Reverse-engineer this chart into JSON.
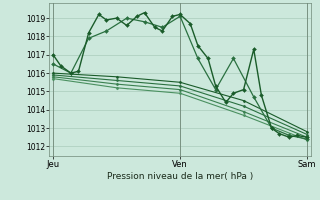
{
  "title": "Pression niveau de la mer( hPa )",
  "background_color": "#cce8dc",
  "grid_color": "#aaccbb",
  "ylim": [
    1011.5,
    1019.8
  ],
  "yticks": [
    1012,
    1013,
    1014,
    1015,
    1016,
    1017,
    1018,
    1019
  ],
  "xtick_labels": [
    "Jeu",
    "Ven",
    "Sam"
  ],
  "xtick_positions": [
    0.0,
    0.5,
    1.0
  ],
  "series": [
    {
      "x": [
        0.0,
        0.03,
        0.07,
        0.1,
        0.14,
        0.18,
        0.21,
        0.25,
        0.29,
        0.33,
        0.36,
        0.4,
        0.43,
        0.47,
        0.5,
        0.54,
        0.57,
        0.61,
        0.64,
        0.68,
        0.71,
        0.75,
        0.79,
        0.82,
        0.86,
        0.89,
        0.93,
        0.96,
        1.0
      ],
      "y": [
        1017.0,
        1016.4,
        1016.0,
        1016.1,
        1018.2,
        1019.2,
        1018.9,
        1019.0,
        1018.6,
        1019.1,
        1019.3,
        1018.5,
        1018.3,
        1019.1,
        1019.2,
        1018.7,
        1017.5,
        1016.8,
        1015.3,
        1014.4,
        1014.9,
        1015.1,
        1017.3,
        1014.8,
        1013.0,
        1012.7,
        1012.5,
        1012.6,
        1012.5
      ],
      "color": "#1a5c2a",
      "marker": "D",
      "markersize": 2.0,
      "linewidth": 1.0,
      "zorder": 5
    },
    {
      "x": [
        0.0,
        0.07,
        0.14,
        0.21,
        0.29,
        0.36,
        0.43,
        0.5,
        0.57,
        0.64,
        0.71,
        0.79,
        0.86,
        0.93,
        1.0
      ],
      "y": [
        1016.5,
        1016.0,
        1017.9,
        1018.3,
        1019.0,
        1018.8,
        1018.5,
        1019.1,
        1016.8,
        1015.1,
        1016.8,
        1014.7,
        1013.0,
        1012.6,
        1012.4
      ],
      "color": "#2a7040",
      "marker": "D",
      "markersize": 2.0,
      "linewidth": 0.9,
      "zorder": 4
    },
    {
      "x": [
        0.0,
        0.25,
        0.5,
        0.75,
        1.0
      ],
      "y": [
        1016.0,
        1015.8,
        1015.5,
        1014.5,
        1012.8
      ],
      "color": "#1a5c2a",
      "marker": "D",
      "markersize": 1.5,
      "linewidth": 0.8,
      "zorder": 3
    },
    {
      "x": [
        0.0,
        0.25,
        0.5,
        0.75,
        1.0
      ],
      "y": [
        1015.9,
        1015.6,
        1015.3,
        1014.2,
        1012.65
      ],
      "color": "#2a7040",
      "marker": "D",
      "markersize": 1.5,
      "linewidth": 0.8,
      "zorder": 3
    },
    {
      "x": [
        0.0,
        0.25,
        0.5,
        0.75,
        1.0
      ],
      "y": [
        1015.8,
        1015.4,
        1015.1,
        1013.9,
        1012.5
      ],
      "color": "#3a8050",
      "marker": "D",
      "markersize": 1.5,
      "linewidth": 0.8,
      "zorder": 3
    },
    {
      "x": [
        0.0,
        0.25,
        0.5,
        0.75,
        1.0
      ],
      "y": [
        1015.7,
        1015.2,
        1014.9,
        1013.7,
        1012.35
      ],
      "color": "#4a9060",
      "marker": "D",
      "markersize": 1.5,
      "linewidth": 0.8,
      "zorder": 3
    }
  ],
  "vlines": [
    0.0,
    0.5,
    1.0
  ],
  "vline_color": "#708878",
  "spine_color": "#708878"
}
